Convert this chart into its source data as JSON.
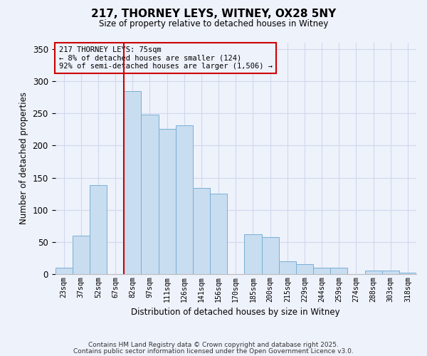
{
  "title": "217, THORNEY LEYS, WITNEY, OX28 5NY",
  "subtitle": "Size of property relative to detached houses in Witney",
  "xlabel": "Distribution of detached houses by size in Witney",
  "ylabel": "Number of detached properties",
  "categories": [
    "23sqm",
    "37sqm",
    "52sqm",
    "67sqm",
    "82sqm",
    "97sqm",
    "111sqm",
    "126sqm",
    "141sqm",
    "156sqm",
    "170sqm",
    "185sqm",
    "200sqm",
    "215sqm",
    "229sqm",
    "244sqm",
    "259sqm",
    "274sqm",
    "288sqm",
    "303sqm",
    "318sqm"
  ],
  "values": [
    10,
    60,
    138,
    0,
    285,
    248,
    226,
    232,
    134,
    125,
    0,
    62,
    58,
    20,
    15,
    10,
    10,
    0,
    5,
    5,
    2
  ],
  "bar_color": "#c8ddf0",
  "bar_edge_color": "#7aafd4",
  "bg_color": "#eef2fb",
  "grid_color": "#d0d8ee",
  "vline_x_index": 4,
  "vline_color": "#cc0000",
  "annotation_title": "217 THORNEY LEYS: 75sqm",
  "annotation_line2": "← 8% of detached houses are smaller (124)",
  "annotation_line3": "92% of semi-detached houses are larger (1,506) →",
  "annotation_box_color": "#cc0000",
  "ylim": [
    0,
    360
  ],
  "yticks": [
    0,
    50,
    100,
    150,
    200,
    250,
    300,
    350
  ],
  "footer1": "Contains HM Land Registry data © Crown copyright and database right 2025.",
  "footer2": "Contains public sector information licensed under the Open Government Licence v3.0."
}
